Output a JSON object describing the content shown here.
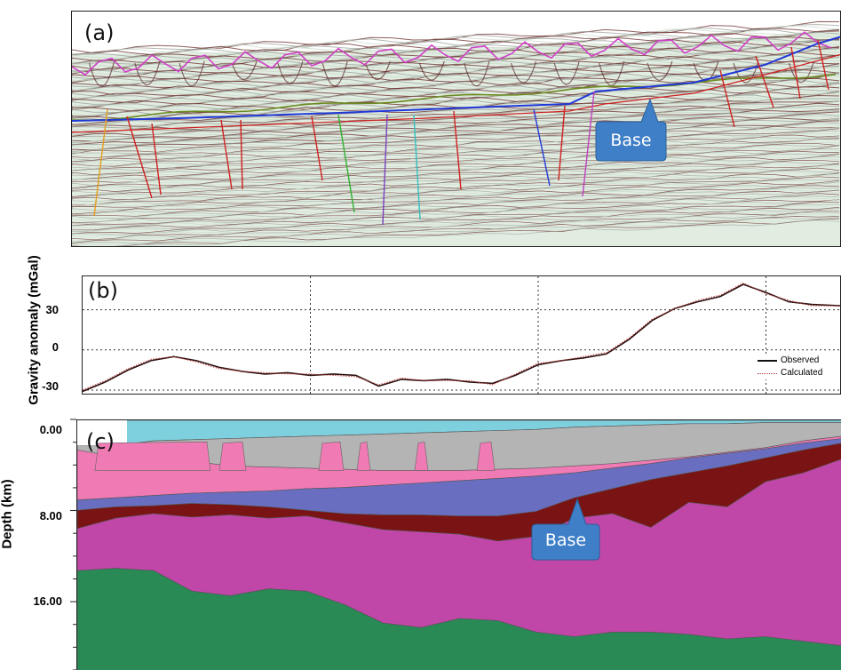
{
  "panels": {
    "a": {
      "letter": "(a)",
      "callout": "Base"
    },
    "b": {
      "letter": "(b)"
    },
    "c": {
      "letter": "(c)",
      "callout": "Base"
    }
  },
  "chart_data": [
    {
      "type": "line",
      "panel": "b",
      "xlabel": "",
      "ylabel": "Gravity anomaly (mGal)",
      "yticks": [
        "30",
        "0",
        "-30"
      ],
      "ylim": [
        -34,
        55
      ],
      "xlim": [
        0,
        100
      ],
      "grid": true,
      "legend_position": "bottom-right",
      "x": [
        0,
        3,
        6,
        9,
        12,
        15,
        18,
        21,
        24,
        27,
        30,
        33,
        36,
        39,
        42,
        45,
        48,
        51,
        54,
        57,
        60,
        63,
        66,
        69,
        72,
        75,
        78,
        81,
        84,
        87,
        90,
        93,
        96,
        100
      ],
      "series": [
        {
          "name": "Observed",
          "values": [
            -31,
            -24,
            -15,
            -8,
            -5,
            -8,
            -13,
            -16,
            -18,
            -17,
            -19,
            -18,
            -19,
            -27,
            -22,
            -23,
            -22,
            -24,
            -25,
            -19,
            -11,
            -8,
            -6,
            -3,
            8,
            22,
            31,
            36,
            40,
            49,
            43,
            36,
            34,
            33
          ]
        },
        {
          "name": "Calculated",
          "values": [
            -30,
            -23,
            -14,
            -7,
            -5,
            -9,
            -14,
            -16,
            -17,
            -18,
            -18,
            -19,
            -20,
            -26,
            -21,
            -23,
            -23,
            -23,
            -26,
            -18,
            -10,
            -8,
            -5,
            -2,
            9,
            23,
            31,
            37,
            41,
            50,
            42,
            37,
            33,
            33
          ]
        }
      ]
    },
    {
      "type": "area",
      "panel": "c",
      "ylabel": "Depth (km)",
      "yticks": [
        "0.00",
        "8.00",
        "16.00"
      ],
      "ylim": [
        0,
        22
      ],
      "xlim": [
        0,
        100
      ],
      "x": [
        0,
        5,
        10,
        15,
        20,
        25,
        30,
        35,
        40,
        45,
        50,
        55,
        60,
        65,
        70,
        75,
        80,
        85,
        90,
        95,
        100
      ],
      "layers": [
        {
          "name": "water",
          "color": "#7fd0de",
          "top": [
            0,
            0,
            0,
            0,
            0,
            0,
            0,
            0,
            0,
            0,
            0,
            0,
            0,
            0,
            0,
            0,
            0,
            0,
            0,
            0,
            0
          ],
          "bottom": [
            2.2,
            2.2,
            1.8,
            1.7,
            1.6,
            1.5,
            1.4,
            1.3,
            1.2,
            1.1,
            1.0,
            0.9,
            0.8,
            0.6,
            0.5,
            0.4,
            0.3,
            0.3,
            0.2,
            0.2,
            0.2
          ]
        },
        {
          "name": "sediment-grey",
          "color": "#b4b4b4",
          "top": [
            2.2,
            2.2,
            1.8,
            1.7,
            1.6,
            1.5,
            1.4,
            1.3,
            1.2,
            1.1,
            1.0,
            0.9,
            0.8,
            0.6,
            0.5,
            0.4,
            0.3,
            0.3,
            0.2,
            0.2,
            0.2
          ],
          "bottom": [
            5.5,
            5.6,
            5.4,
            5.3,
            5.5,
            5.8,
            5.6,
            5.6,
            5.4,
            5.2,
            5.0,
            4.8,
            4.6,
            4.4,
            4.0,
            3.6,
            3.2,
            2.8,
            2.4,
            1.8,
            1.4
          ]
        },
        {
          "name": "sediment-pink",
          "color": "#f07ab4",
          "top": [
            2.6,
            3.2,
            3.0,
            3.6,
            4.0,
            4.1,
            4.2,
            4.3,
            4.4,
            4.4,
            4.4,
            4.3,
            4.2,
            4.0,
            3.8,
            3.5,
            3.2,
            2.8,
            2.4,
            1.8,
            1.4
          ],
          "bottom": [
            7.0,
            6.8,
            6.6,
            6.4,
            6.3,
            6.2,
            6.0,
            5.9,
            5.7,
            5.5,
            5.3,
            5.1,
            4.9,
            4.6,
            4.2,
            3.8,
            3.3,
            2.9,
            2.5,
            2.0,
            1.6
          ]
        },
        {
          "name": "base-blue",
          "color": "#6a6ec0",
          "top": [
            7.0,
            6.8,
            6.6,
            6.4,
            6.3,
            6.2,
            6.0,
            5.9,
            5.7,
            5.5,
            5.3,
            5.1,
            4.9,
            4.6,
            4.2,
            3.8,
            3.3,
            2.9,
            2.5,
            2.0,
            1.6
          ],
          "bottom": [
            7.9,
            7.6,
            7.5,
            7.3,
            7.4,
            7.6,
            7.9,
            8.2,
            8.3,
            8.3,
            8.4,
            8.4,
            8.0,
            6.8,
            6.0,
            5.2,
            4.6,
            4.0,
            3.3,
            2.6,
            2.0
          ]
        },
        {
          "name": "crust-dark",
          "color": "#7a1414",
          "top": [
            7.9,
            7.6,
            7.5,
            7.3,
            7.4,
            7.6,
            7.9,
            8.2,
            8.3,
            8.3,
            8.4,
            8.4,
            8.0,
            6.8,
            6.0,
            5.2,
            4.6,
            4.0,
            3.3,
            2.6,
            2.0
          ],
          "bottom": [
            9.5,
            8.6,
            8.2,
            8.5,
            8.3,
            8.6,
            8.4,
            9.0,
            9.6,
            9.8,
            10.0,
            10.6,
            10.2,
            8.6,
            8.2,
            9.4,
            7.2,
            7.6,
            5.4,
            4.6,
            3.4
          ]
        },
        {
          "name": "crust-magenta",
          "color": "#c046a8",
          "top": [
            9.5,
            8.6,
            8.2,
            8.5,
            8.3,
            8.6,
            8.4,
            9.0,
            9.6,
            9.8,
            10.0,
            10.6,
            10.2,
            8.6,
            8.2,
            9.4,
            7.2,
            7.6,
            5.4,
            4.6,
            3.4
          ],
          "bottom": [
            13.2,
            13.0,
            13.2,
            15.0,
            15.4,
            14.8,
            15.0,
            16.2,
            17.8,
            18.2,
            17.4,
            17.6,
            18.6,
            19.0,
            18.6,
            18.6,
            18.8,
            19.2,
            19.0,
            19.4,
            19.8
          ]
        },
        {
          "name": "mantle-green",
          "color": "#2a8a56",
          "top": [
            13.2,
            13.0,
            13.2,
            15.0,
            15.4,
            14.8,
            15.0,
            16.2,
            17.8,
            18.2,
            17.4,
            17.6,
            18.6,
            19.0,
            18.6,
            18.6,
            18.8,
            19.2,
            19.0,
            19.4,
            19.8
          ],
          "bottom": [
            22,
            22,
            22,
            22,
            22,
            22,
            22,
            22,
            22,
            22,
            22,
            22,
            22,
            22,
            22,
            22,
            22,
            22,
            22,
            22,
            22
          ]
        }
      ]
    }
  ],
  "colors": {
    "observed": "#2a1010",
    "calculated": "#c04040",
    "callout": "#3f7fc7",
    "horizon_blue": "#2038d8",
    "horizon_magenta": "#d040c8",
    "horizon_green": "#6a8a20",
    "fault_red": "#d02020"
  }
}
